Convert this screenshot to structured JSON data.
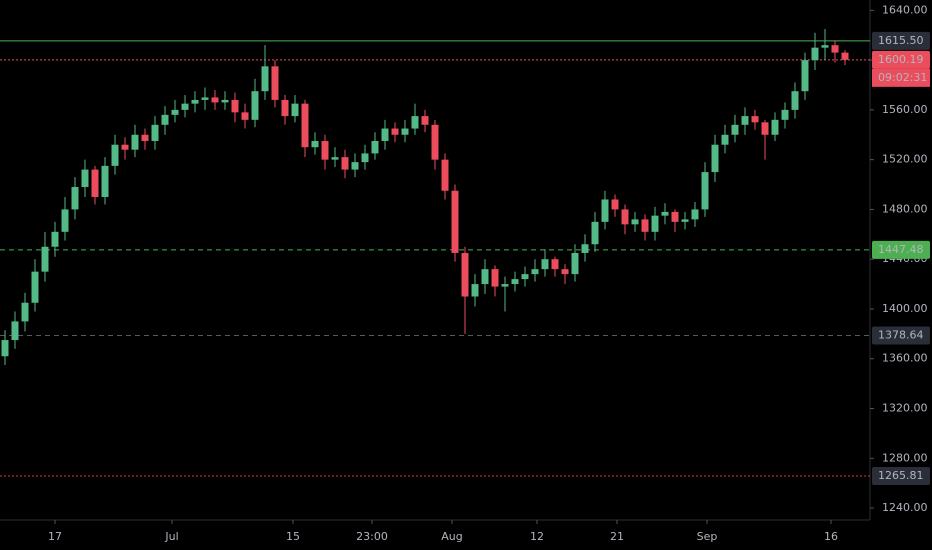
{
  "chart_data": {
    "type": "candlestick",
    "up_color": "#53b987",
    "down_color": "#eb4d5c",
    "open": [
      1362,
      1375,
      1390,
      1405,
      1430,
      1450,
      1462,
      1480,
      1498,
      1512,
      1490,
      1515,
      1532,
      1528,
      1540,
      1535,
      1548,
      1556,
      1560,
      1565,
      1568,
      1570,
      1566,
      1568,
      1558,
      1552,
      1575,
      1595,
      1568,
      1555,
      1565,
      1530,
      1535,
      1520,
      1522,
      1512,
      1518,
      1525,
      1535,
      1545,
      1540,
      1545,
      1555,
      1548,
      1520,
      1495,
      1445,
      1410,
      1420,
      1432,
      1418,
      1420,
      1424,
      1428,
      1432,
      1440,
      1432,
      1428,
      1445,
      1452,
      1470,
      1488,
      1480,
      1468,
      1472,
      1462,
      1475,
      1478,
      1470,
      1472,
      1480,
      1510,
      1532,
      1540,
      1548,
      1555,
      1550,
      1540,
      1552,
      1560,
      1575,
      1600,
      1610,
      1612,
      1606
    ],
    "high": [
      1383,
      1398,
      1413,
      1440,
      1462,
      1470,
      1490,
      1506,
      1520,
      1515,
      1522,
      1540,
      1538,
      1548,
      1545,
      1555,
      1563,
      1568,
      1572,
      1575,
      1578,
      1576,
      1575,
      1574,
      1565,
      1585,
      1612,
      1600,
      1572,
      1572,
      1568,
      1542,
      1540,
      1530,
      1528,
      1525,
      1532,
      1542,
      1552,
      1550,
      1552,
      1565,
      1560,
      1552,
      1525,
      1500,
      1450,
      1428,
      1440,
      1435,
      1426,
      1430,
      1434,
      1440,
      1448,
      1442,
      1436,
      1452,
      1460,
      1478,
      1495,
      1492,
      1484,
      1478,
      1476,
      1482,
      1485,
      1480,
      1478,
      1486,
      1518,
      1540,
      1548,
      1556,
      1562,
      1560,
      1552,
      1558,
      1566,
      1582,
      1606,
      1622,
      1625,
      1616,
      1608
    ],
    "low": [
      1355,
      1368,
      1382,
      1398,
      1422,
      1442,
      1455,
      1472,
      1490,
      1484,
      1484,
      1508,
      1520,
      1522,
      1528,
      1528,
      1540,
      1550,
      1554,
      1558,
      1560,
      1560,
      1560,
      1550,
      1545,
      1546,
      1568,
      1562,
      1548,
      1550,
      1522,
      1524,
      1512,
      1514,
      1505,
      1506,
      1512,
      1520,
      1528,
      1534,
      1534,
      1540,
      1542,
      1512,
      1488,
      1438,
      1380,
      1402,
      1412,
      1410,
      1398,
      1414,
      1418,
      1422,
      1426,
      1426,
      1420,
      1422,
      1438,
      1446,
      1464,
      1474,
      1460,
      1462,
      1455,
      1455,
      1468,
      1462,
      1464,
      1466,
      1474,
      1502,
      1525,
      1534,
      1540,
      1544,
      1520,
      1535,
      1545,
      1553,
      1568,
      1592,
      1600,
      1598,
      1596
    ],
    "close": [
      1375,
      1390,
      1405,
      1430,
      1450,
      1462,
      1480,
      1498,
      1512,
      1490,
      1515,
      1532,
      1528,
      1540,
      1535,
      1548,
      1556,
      1560,
      1565,
      1568,
      1570,
      1566,
      1568,
      1558,
      1552,
      1575,
      1595,
      1568,
      1555,
      1565,
      1530,
      1535,
      1520,
      1522,
      1512,
      1518,
      1525,
      1535,
      1545,
      1540,
      1545,
      1555,
      1548,
      1520,
      1495,
      1445,
      1410,
      1420,
      1432,
      1418,
      1420,
      1424,
      1428,
      1432,
      1440,
      1432,
      1428,
      1445,
      1452,
      1470,
      1488,
      1480,
      1468,
      1472,
      1462,
      1475,
      1478,
      1470,
      1472,
      1480,
      1510,
      1532,
      1540,
      1548,
      1555,
      1550,
      1540,
      1552,
      1560,
      1575,
      1600,
      1610,
      1612,
      1606,
      1600.19
    ],
    "xlim": [
      -0.5,
      86.5
    ],
    "xticks": [
      {
        "value": 5,
        "label": "17"
      },
      {
        "value": 16.7,
        "label": "Jul"
      },
      {
        "value": 28.8,
        "label": "15"
      },
      {
        "value": 36.7,
        "label": "23:00"
      },
      {
        "value": 44.7,
        "label": "Aug"
      },
      {
        "value": 53.2,
        "label": "12"
      },
      {
        "value": 61.2,
        "label": "21"
      },
      {
        "value": 70.2,
        "label": "Sep"
      },
      {
        "value": 82.6,
        "label": "16"
      }
    ],
    "ylim": [
      1230.4,
      1648.3
    ],
    "yticks": [
      {
        "value": 1240,
        "label": "1240.00"
      },
      {
        "value": 1280,
        "label": "1280.00"
      },
      {
        "value": 1320,
        "label": "1320.00"
      },
      {
        "value": 1360,
        "label": "1360.00"
      },
      {
        "value": 1400,
        "label": "1400.00"
      },
      {
        "value": 1440,
        "label": "1440.00"
      },
      {
        "value": 1480,
        "label": "1480.00"
      },
      {
        "value": 1520,
        "label": "1520.00"
      },
      {
        "value": 1560,
        "label": "1560.00"
      },
      {
        "value": 1600,
        "label": "1600.00"
      },
      {
        "value": 1640,
        "label": "1640.00"
      }
    ],
    "price_lines": [
      {
        "value": 1615.5,
        "label": "1615.50",
        "color": "#4caf50",
        "style": "solid",
        "box": "#2a2e39"
      },
      {
        "value": 1600.19,
        "label": "1600.19",
        "color": "#eb4d5c",
        "style": "dotted",
        "box": "#eb4d5c"
      },
      {
        "value": 1447.48,
        "label": "1447.48",
        "color": "#4caf50",
        "style": "dashed",
        "box": "#4caf50"
      },
      {
        "value": 1378.64,
        "label": "1378.64",
        "color": "#555a66",
        "style": "dashed",
        "box": "#2a2e39"
      },
      {
        "value": 1265.81,
        "label": "1265.81",
        "color": "#e53935",
        "style": "dotted",
        "box": "#2a2e39"
      }
    ],
    "countdown": "09:02:31"
  }
}
